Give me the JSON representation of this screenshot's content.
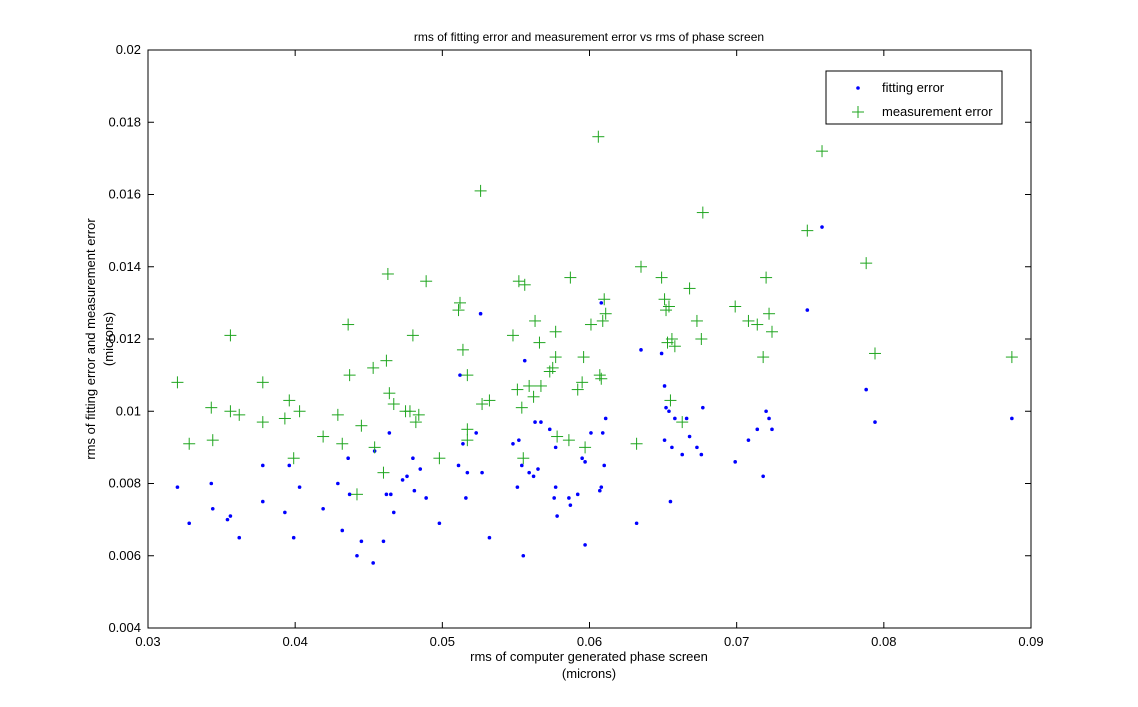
{
  "chart_data": {
    "type": "scatter",
    "title": "rms of fitting error and measurement error vs rms of phase screen",
    "xlabel": "rms of computer generated phase screen",
    "xlabel_units": "(microns)",
    "ylabel": "rms of fitting error and measurement error",
    "ylabel_units": "(microns)",
    "xlim": [
      0.03,
      0.09
    ],
    "ylim": [
      0.004,
      0.02
    ],
    "xticks": [
      "0.03",
      "0.04",
      "0.05",
      "0.06",
      "0.07",
      "0.08",
      "0.09"
    ],
    "yticks": [
      "0.004",
      "0.006",
      "0.008",
      "0.01",
      "0.012",
      "0.014",
      "0.016",
      "0.018",
      "0.02"
    ],
    "grid": false,
    "legend_position": "top-right",
    "series": [
      {
        "name": "fitting error",
        "marker": "dot",
        "color": "#0000ff",
        "points": [
          [
            0.032,
            0.0079
          ],
          [
            0.0328,
            0.0069
          ],
          [
            0.0343,
            0.008
          ],
          [
            0.0344,
            0.0073
          ],
          [
            0.0354,
            0.007
          ],
          [
            0.0356,
            0.0071
          ],
          [
            0.0362,
            0.0065
          ],
          [
            0.0378,
            0.0085
          ],
          [
            0.0378,
            0.0075
          ],
          [
            0.0393,
            0.0072
          ],
          [
            0.0396,
            0.0085
          ],
          [
            0.0399,
            0.0065
          ],
          [
            0.0403,
            0.0079
          ],
          [
            0.0419,
            0.0073
          ],
          [
            0.0429,
            0.008
          ],
          [
            0.0432,
            0.0067
          ],
          [
            0.0436,
            0.0087
          ],
          [
            0.0437,
            0.0077
          ],
          [
            0.0442,
            0.006
          ],
          [
            0.0445,
            0.0064
          ],
          [
            0.0453,
            0.0058
          ],
          [
            0.0454,
            0.0089
          ],
          [
            0.046,
            0.0064
          ],
          [
            0.0462,
            0.0077
          ],
          [
            0.0464,
            0.0094
          ],
          [
            0.0465,
            0.0077
          ],
          [
            0.0467,
            0.0072
          ],
          [
            0.0473,
            0.0081
          ],
          [
            0.0476,
            0.0082
          ],
          [
            0.048,
            0.0087
          ],
          [
            0.0481,
            0.0078
          ],
          [
            0.0485,
            0.0084
          ],
          [
            0.0489,
            0.0076
          ],
          [
            0.0498,
            0.0069
          ],
          [
            0.0511,
            0.0085
          ],
          [
            0.0512,
            0.011
          ],
          [
            0.0514,
            0.0091
          ],
          [
            0.0516,
            0.0076
          ],
          [
            0.0517,
            0.0083
          ],
          [
            0.0523,
            0.0094
          ],
          [
            0.0526,
            0.0127
          ],
          [
            0.0527,
            0.0083
          ],
          [
            0.0532,
            0.0065
          ],
          [
            0.0548,
            0.0091
          ],
          [
            0.0551,
            0.0079
          ],
          [
            0.0552,
            0.0092
          ],
          [
            0.0554,
            0.0085
          ],
          [
            0.0555,
            0.006
          ],
          [
            0.0556,
            0.0114
          ],
          [
            0.0559,
            0.0083
          ],
          [
            0.0562,
            0.0082
          ],
          [
            0.0563,
            0.0097
          ],
          [
            0.0565,
            0.0084
          ],
          [
            0.0567,
            0.0097
          ],
          [
            0.0573,
            0.0095
          ],
          [
            0.0576,
            0.0076
          ],
          [
            0.0577,
            0.009
          ],
          [
            0.0577,
            0.0079
          ],
          [
            0.0578,
            0.0071
          ],
          [
            0.0586,
            0.0076
          ],
          [
            0.0587,
            0.0074
          ],
          [
            0.0592,
            0.0077
          ],
          [
            0.0595,
            0.0087
          ],
          [
            0.0597,
            0.0063
          ],
          [
            0.0597,
            0.0086
          ],
          [
            0.0601,
            0.0094
          ],
          [
            0.0607,
            0.0078
          ],
          [
            0.0608,
            0.0079
          ],
          [
            0.0608,
            0.013
          ],
          [
            0.0609,
            0.0094
          ],
          [
            0.061,
            0.0085
          ],
          [
            0.0611,
            0.0098
          ],
          [
            0.0632,
            0.0069
          ],
          [
            0.0635,
            0.0117
          ],
          [
            0.0649,
            0.0116
          ],
          [
            0.0651,
            0.0092
          ],
          [
            0.0651,
            0.0107
          ],
          [
            0.0652,
            0.0101
          ],
          [
            0.0654,
            0.01
          ],
          [
            0.0655,
            0.0075
          ],
          [
            0.0656,
            0.009
          ],
          [
            0.0658,
            0.0098
          ],
          [
            0.0663,
            0.0088
          ],
          [
            0.0666,
            0.0098
          ],
          [
            0.0668,
            0.0093
          ],
          [
            0.0673,
            0.009
          ],
          [
            0.0676,
            0.0088
          ],
          [
            0.0677,
            0.0101
          ],
          [
            0.0699,
            0.0086
          ],
          [
            0.0708,
            0.0092
          ],
          [
            0.0714,
            0.0095
          ],
          [
            0.0718,
            0.0082
          ],
          [
            0.072,
            0.01
          ],
          [
            0.0722,
            0.0098
          ],
          [
            0.0724,
            0.0095
          ],
          [
            0.0748,
            0.0128
          ],
          [
            0.0758,
            0.0151
          ],
          [
            0.0788,
            0.0106
          ],
          [
            0.0794,
            0.0097
          ],
          [
            0.0887,
            0.0098
          ]
        ]
      },
      {
        "name": "measurement error",
        "marker": "plus",
        "color": "#1fa51f",
        "points": [
          [
            0.032,
            0.0108
          ],
          [
            0.0328,
            0.0091
          ],
          [
            0.0343,
            0.0101
          ],
          [
            0.0344,
            0.0092
          ],
          [
            0.0356,
            0.0121
          ],
          [
            0.0356,
            0.01
          ],
          [
            0.0362,
            0.0099
          ],
          [
            0.0378,
            0.0108
          ],
          [
            0.0378,
            0.0097
          ],
          [
            0.0393,
            0.0098
          ],
          [
            0.0396,
            0.0103
          ],
          [
            0.0399,
            0.0087
          ],
          [
            0.0403,
            0.01
          ],
          [
            0.0419,
            0.0093
          ],
          [
            0.0429,
            0.0099
          ],
          [
            0.0432,
            0.0091
          ],
          [
            0.0436,
            0.0124
          ],
          [
            0.0437,
            0.011
          ],
          [
            0.0442,
            0.0077
          ],
          [
            0.0445,
            0.0096
          ],
          [
            0.0453,
            0.0112
          ],
          [
            0.0454,
            0.009
          ],
          [
            0.046,
            0.0083
          ],
          [
            0.0462,
            0.0114
          ],
          [
            0.0463,
            0.0138
          ],
          [
            0.0464,
            0.0105
          ],
          [
            0.0467,
            0.0102
          ],
          [
            0.0475,
            0.01
          ],
          [
            0.0478,
            0.01
          ],
          [
            0.048,
            0.0121
          ],
          [
            0.0482,
            0.0097
          ],
          [
            0.0484,
            0.0099
          ],
          [
            0.0489,
            0.0136
          ],
          [
            0.0498,
            0.0087
          ],
          [
            0.0511,
            0.0128
          ],
          [
            0.0512,
            0.013
          ],
          [
            0.0514,
            0.0117
          ],
          [
            0.0517,
            0.0095
          ],
          [
            0.0517,
            0.0092
          ],
          [
            0.0517,
            0.011
          ],
          [
            0.0526,
            0.0161
          ],
          [
            0.0527,
            0.0102
          ],
          [
            0.0532,
            0.0103
          ],
          [
            0.0548,
            0.0121
          ],
          [
            0.0551,
            0.0106
          ],
          [
            0.0552,
            0.0136
          ],
          [
            0.0554,
            0.0101
          ],
          [
            0.0555,
            0.0087
          ],
          [
            0.0556,
            0.0135
          ],
          [
            0.0559,
            0.0107
          ],
          [
            0.0562,
            0.0104
          ],
          [
            0.0563,
            0.0125
          ],
          [
            0.0566,
            0.0119
          ],
          [
            0.0567,
            0.0107
          ],
          [
            0.0573,
            0.0111
          ],
          [
            0.0575,
            0.0112
          ],
          [
            0.0577,
            0.0122
          ],
          [
            0.0577,
            0.0115
          ],
          [
            0.0578,
            0.0093
          ],
          [
            0.0586,
            0.0092
          ],
          [
            0.0587,
            0.0137
          ],
          [
            0.0592,
            0.0106
          ],
          [
            0.0595,
            0.0108
          ],
          [
            0.0596,
            0.0115
          ],
          [
            0.0597,
            0.009
          ],
          [
            0.0601,
            0.0124
          ],
          [
            0.0606,
            0.0176
          ],
          [
            0.0607,
            0.011
          ],
          [
            0.0608,
            0.0109
          ],
          [
            0.0609,
            0.0125
          ],
          [
            0.061,
            0.0131
          ],
          [
            0.0611,
            0.0127
          ],
          [
            0.0632,
            0.0091
          ],
          [
            0.0635,
            0.014
          ],
          [
            0.0649,
            0.0137
          ],
          [
            0.0651,
            0.0131
          ],
          [
            0.0652,
            0.0128
          ],
          [
            0.0653,
            0.0119
          ],
          [
            0.0654,
            0.0129
          ],
          [
            0.0655,
            0.0103
          ],
          [
            0.0656,
            0.012
          ],
          [
            0.0658,
            0.0118
          ],
          [
            0.0663,
            0.0097
          ],
          [
            0.0668,
            0.0134
          ],
          [
            0.0673,
            0.0125
          ],
          [
            0.0676,
            0.012
          ],
          [
            0.0677,
            0.0155
          ],
          [
            0.0699,
            0.0129
          ],
          [
            0.0708,
            0.0125
          ],
          [
            0.0714,
            0.0124
          ],
          [
            0.0718,
            0.0115
          ],
          [
            0.072,
            0.0137
          ],
          [
            0.0722,
            0.0127
          ],
          [
            0.0724,
            0.0122
          ],
          [
            0.0748,
            0.015
          ],
          [
            0.0758,
            0.0172
          ],
          [
            0.0788,
            0.0141
          ],
          [
            0.0794,
            0.0116
          ],
          [
            0.0887,
            0.0115
          ]
        ]
      }
    ]
  }
}
